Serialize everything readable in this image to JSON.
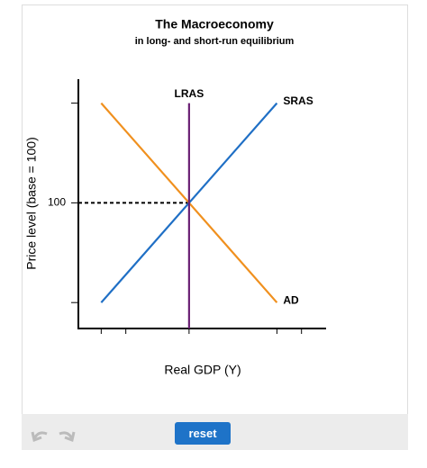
{
  "chart_data": {
    "type": "line",
    "title": "The Macroeconomy",
    "subtitle": "in long- and short-run equilibrium",
    "x_label": "Real GDP (Y)",
    "y_label": "Price level (base = 100)",
    "xlim": [
      37,
      178
    ],
    "ylim": [
      37,
      162
    ],
    "xticks": [
      {
        "value": 50,
        "label": null
      },
      {
        "value": 64,
        "label": null
      },
      {
        "value": 100,
        "label": null
      },
      {
        "value": 150,
        "label": null
      },
      {
        "value": 164,
        "label": null
      }
    ],
    "yticks": [
      {
        "value": 50,
        "label": null
      },
      100,
      {
        "value": 150,
        "label": null
      }
    ],
    "series": [
      {
        "name": "AD",
        "color": "#f0901e",
        "x": [
          50,
          150
        ],
        "values": [
          150,
          50
        ]
      },
      {
        "name": "SRAS",
        "color": "#1f6fc5",
        "x": [
          50,
          150
        ],
        "values": [
          50,
          150
        ]
      },
      {
        "name": "LRAS",
        "color": "#6b2175",
        "x": [
          100,
          100
        ],
        "values": [
          150,
          37
        ]
      }
    ]
  },
  "controls": {
    "reset": "reset"
  }
}
